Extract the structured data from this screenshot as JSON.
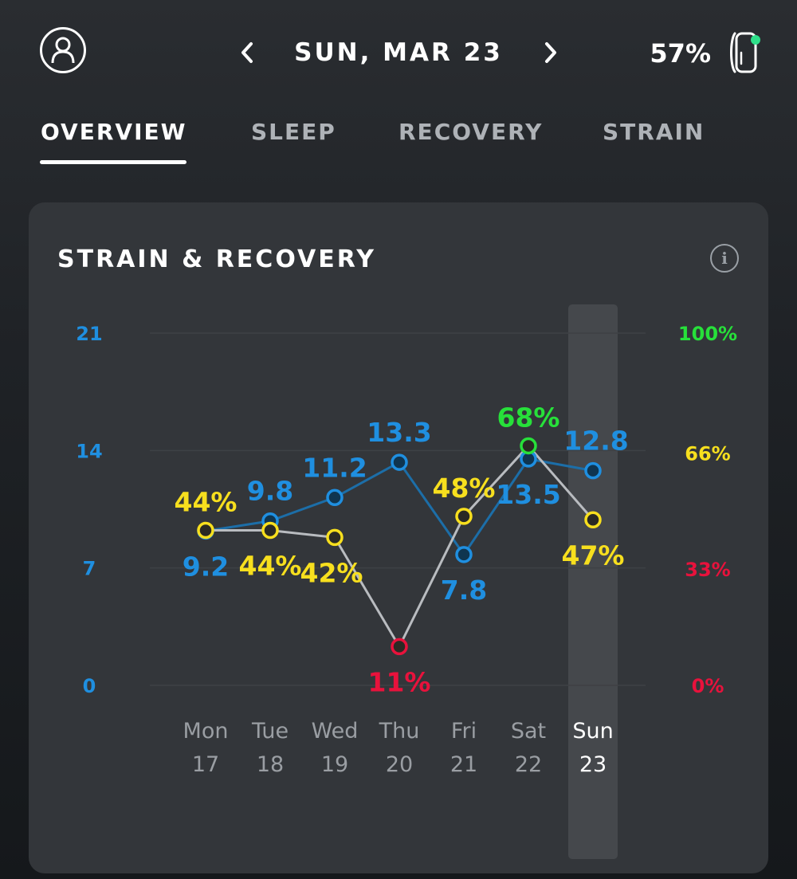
{
  "header": {
    "date": "SUN, MAR 23",
    "battery": "57%",
    "icons": {
      "profile": "user-circle-icon",
      "prev": "chevron-left-icon",
      "next": "chevron-right-icon",
      "strap": "strap-device-icon"
    },
    "strap_status_color": "#2ee08a"
  },
  "tabs": [
    {
      "label": "OVERVIEW",
      "active": true
    },
    {
      "label": "SLEEP",
      "active": false
    },
    {
      "label": "RECOVERY",
      "active": false
    },
    {
      "label": "STRAIN",
      "active": false
    }
  ],
  "card": {
    "title": "STRAIN & RECOVERY",
    "info_label": "i"
  },
  "colors": {
    "strain": "#1f8fe0",
    "strain_line": "#1c6ea8",
    "recovery_line": "#b9bcc0",
    "green": "#27e03a",
    "yellow": "#f7df1e",
    "red": "#e8123c"
  },
  "chart_data": {
    "type": "line",
    "x_days": [
      "Mon",
      "Tue",
      "Wed",
      "Thu",
      "Fri",
      "Sat",
      "Sun"
    ],
    "x_dates": [
      "17",
      "18",
      "19",
      "20",
      "21",
      "22",
      "23"
    ],
    "highlighted_day": "Sun 23",
    "left_axis": {
      "ticks": [
        "0",
        "7",
        "14",
        "21"
      ],
      "range": [
        0,
        21
      ]
    },
    "right_axis": {
      "ticks": [
        "0%",
        "33%",
        "66%",
        "100%"
      ],
      "range": [
        0,
        100
      ]
    },
    "grid": true,
    "series": [
      {
        "key": "strain",
        "values": [
          9.2,
          9.8,
          11.2,
          13.3,
          7.8,
          13.5,
          12.8
        ],
        "labels": [
          "9.2",
          "9.8",
          "11.2",
          "13.3",
          "7.8",
          "13.5",
          "12.8"
        ]
      },
      {
        "key": "recovery",
        "values": [
          44,
          44,
          42,
          11,
          48,
          68,
          47
        ],
        "labels": [
          "44%",
          "44%",
          "42%",
          "11%",
          "48%",
          "68%",
          "47%"
        ],
        "zones": [
          "yellow",
          "yellow",
          "yellow",
          "red",
          "yellow",
          "green",
          "yellow"
        ]
      }
    ]
  }
}
